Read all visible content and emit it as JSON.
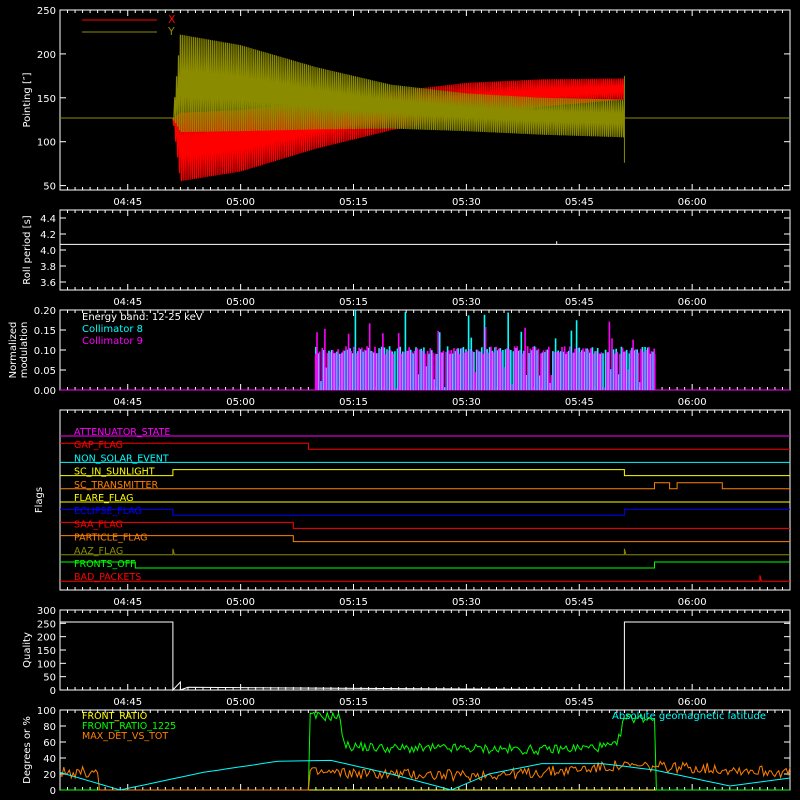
{
  "chart_data": [
    {
      "id": "pointing",
      "type": "line",
      "ylabel": "Pointing [″]",
      "ylim": [
        45,
        250
      ],
      "yticks": [
        50,
        100,
        150,
        200,
        250
      ],
      "xticks": [
        "04:45",
        "05:00",
        "05:15",
        "05:30",
        "05:45",
        "06:00"
      ],
      "legend": {
        "placement": "top-left",
        "entries": [
          {
            "name": "X",
            "color": "#ff0000"
          },
          {
            "name": "Y",
            "color": "#8b8b00"
          }
        ]
      },
      "series": [
        {
          "name": "X",
          "color": "#ff0000",
          "envelope": {
            "note": "oscillation envelope",
            "x": [
              "04:36",
              "04:51",
              "04:52",
              "05:00",
              "05:10",
              "05:20",
              "05:30",
              "05:40",
              "05:51"
            ],
            "upper": [
              127,
              127,
              133,
              136,
              145,
              157,
              167,
              171,
              172
            ],
            "lower": [
              127,
              127,
              55,
              66,
              92,
              113,
              128,
              140,
              148
            ]
          }
        },
        {
          "name": "Y",
          "color": "#8b8b00",
          "envelope": {
            "note": "oscillation envelope",
            "x": [
              "04:36",
              "04:51",
              "04:52",
              "05:00",
              "05:10",
              "05:20",
              "05:30",
              "05:40",
              "05:51"
            ],
            "upper": [
              127,
              127,
              222,
              210,
              185,
              165,
              155,
              150,
              148
            ],
            "lower": [
              127,
              127,
              111,
              112,
              114,
              115,
              112,
              108,
              105
            ]
          }
        }
      ]
    },
    {
      "id": "roll",
      "type": "line",
      "ylabel": "Roll period [s]",
      "ylim": [
        3.5,
        4.5
      ],
      "yticks": [
        3.6,
        3.8,
        4.0,
        4.2,
        4.4
      ],
      "xticks": [
        "04:45",
        "05:00",
        "05:15",
        "05:30",
        "05:45",
        "06:00"
      ],
      "series": [
        {
          "name": "",
          "color": "#ffffff",
          "x": [
            "04:36",
            "06:13"
          ],
          "values": [
            4.07,
            4.07
          ]
        }
      ]
    },
    {
      "id": "modulation",
      "type": "line",
      "ylabel": "Normalized\nmodulation",
      "ylim": [
        0,
        0.2
      ],
      "yticks": [
        0.0,
        0.05,
        0.1,
        0.15,
        0.2
      ],
      "xticks": [
        "04:45",
        "05:00",
        "05:15",
        "05:30",
        "05:45",
        "06:00"
      ],
      "annotations": [
        {
          "text": "Energy band: 12-25 keV",
          "color": "#ffffff"
        }
      ],
      "legend": {
        "placement": "top-left",
        "entries": [
          {
            "name": "Collimator 8",
            "color": "#00ffff"
          },
          {
            "name": "Collimator 9",
            "color": "#ff00ff"
          }
        ]
      },
      "active_window": [
        "05:10",
        "05:55"
      ],
      "series": [
        {
          "name": "Collimator 8",
          "color": "#00ffff",
          "typical": 0.1
        },
        {
          "name": "Collimator 9",
          "color": "#ff00ff",
          "typical": 0.1
        }
      ]
    },
    {
      "id": "flags",
      "type": "line",
      "ylabel": "Flags",
      "xticks": [
        "04:45",
        "05:00",
        "05:15",
        "05:30",
        "05:45",
        "06:00"
      ],
      "series": [
        {
          "name": "ATTENUATOR_STATE",
          "color": "#ff00ff",
          "steps": [
            [
              "04:36",
              0
            ]
          ]
        },
        {
          "name": "GAP_FLAG",
          "color": "#ff0000",
          "steps": [
            [
              "04:36",
              1
            ],
            [
              "05:09",
              0
            ]
          ]
        },
        {
          "name": "NON_SOLAR_EVENT",
          "color": "#00ffff",
          "steps": [
            [
              "04:36",
              0
            ]
          ]
        },
        {
          "name": "SC_IN_SUNLIGHT",
          "color": "#ffff00",
          "steps": [
            [
              "04:36",
              0
            ],
            [
              "04:51",
              1
            ],
            [
              "05:51",
              0
            ]
          ]
        },
        {
          "name": "SC_TRANSMITTER",
          "color": "#ff8000",
          "steps": [
            [
              "04:36",
              0
            ],
            [
              "05:55",
              1
            ],
            [
              "05:57",
              0
            ],
            [
              "05:58",
              1
            ],
            [
              "06:04",
              0
            ]
          ]
        },
        {
          "name": "FLARE_FLAG",
          "color": "#ffff00",
          "steps": [
            [
              "04:36",
              0
            ]
          ]
        },
        {
          "name": "ECLIPSE_FLAG",
          "color": "#0000ff",
          "steps": [
            [
              "04:36",
              1
            ],
            [
              "04:51",
              0
            ],
            [
              "05:51",
              1
            ]
          ]
        },
        {
          "name": "SAA_FLAG",
          "color": "#ff0000",
          "steps": [
            [
              "04:36",
              1
            ],
            [
              "05:07",
              0
            ]
          ]
        },
        {
          "name": "PARTICLE_FLAG",
          "color": "#ff8000",
          "steps": [
            [
              "04:36",
              1
            ],
            [
              "05:07",
              0
            ]
          ]
        },
        {
          "name": "AAZ_FLAG",
          "color": "#8b8b00",
          "steps": [
            [
              "04:36",
              0
            ],
            [
              "04:51",
              1
            ],
            [
              "04:51",
              0
            ],
            [
              "05:51",
              1
            ],
            [
              "05:51",
              0
            ]
          ]
        },
        {
          "name": "FRONTS_OFF",
          "color": "#00ff00",
          "steps": [
            [
              "04:36",
              1
            ],
            [
              "04:46",
              0
            ],
            [
              "05:55",
              1
            ]
          ]
        },
        {
          "name": "BAD_PACKETS",
          "color": "#ff0000",
          "steps": [
            [
              "04:36",
              0
            ],
            [
              "06:09",
              1
            ],
            [
              "06:09",
              0
            ]
          ]
        }
      ]
    },
    {
      "id": "quality",
      "type": "line",
      "ylabel": "Quality",
      "ylim": [
        0,
        300
      ],
      "yticks": [
        0,
        50,
        100,
        150,
        200,
        250,
        300
      ],
      "xticks": [
        "04:45",
        "05:00",
        "05:15",
        "05:30",
        "05:45",
        "06:00"
      ],
      "series": [
        {
          "name": "",
          "color": "#ffffff",
          "x": [
            "04:36",
            "04:51",
            "04:51",
            "04:52",
            "04:52",
            "04:53",
            "05:51",
            "05:51",
            "06:13"
          ],
          "values": [
            255,
            255,
            0,
            30,
            0,
            10,
            0,
            255,
            255
          ]
        }
      ]
    },
    {
      "id": "ratios",
      "type": "line",
      "ylabel": "Degrees or %",
      "ylim": [
        0,
        100
      ],
      "yticks": [
        0,
        20,
        40,
        60,
        80,
        100
      ],
      "legend": {
        "placement": "top-left",
        "entries": [
          {
            "name": "FRONT_RATIO",
            "color": "#ffff00"
          },
          {
            "name": "FRONT_RATIO_1225",
            "color": "#00ff00"
          },
          {
            "name": "MAX_DET_VS_TOT",
            "color": "#ff8000"
          }
        ]
      },
      "series": [
        {
          "name": "FRONT_RATIO",
          "color": "#ffff00",
          "x": [
            "04:36",
            "06:13"
          ],
          "values": [
            0,
            0
          ]
        },
        {
          "name": "FRONT_RATIO_1225",
          "color": "#00ff00",
          "x": [
            "04:36",
            "05:09",
            "05:09",
            "05:13",
            "05:14",
            "05:20",
            "05:30",
            "05:40",
            "05:50",
            "05:51",
            "05:55",
            "05:55",
            "06:13"
          ],
          "values": [
            0,
            0,
            92,
            92,
            55,
            52,
            52,
            50,
            55,
            90,
            90,
            0,
            0
          ]
        },
        {
          "name": "MAX_DET_VS_TOT",
          "color": "#ff8000",
          "x": [
            "04:36",
            "04:41",
            "04:41",
            "05:09",
            "05:09",
            "05:20",
            "05:30",
            "05:40",
            "05:50",
            "06:00",
            "06:13"
          ],
          "values": [
            22,
            22,
            0,
            0,
            22,
            20,
            18,
            22,
            30,
            28,
            22
          ]
        },
        {
          "name": "Absolute geomagnetic latitude",
          "color": "#00ffff",
          "x": [
            "04:36",
            "04:44",
            "04:55",
            "05:05",
            "05:12",
            "05:20",
            "05:28",
            "05:33",
            "05:40",
            "05:48",
            "05:55",
            "06:05",
            "06:13"
          ],
          "values": [
            22,
            0,
            22,
            36,
            37,
            20,
            0,
            20,
            33,
            33,
            25,
            5,
            15
          ]
        }
      ]
    }
  ]
}
